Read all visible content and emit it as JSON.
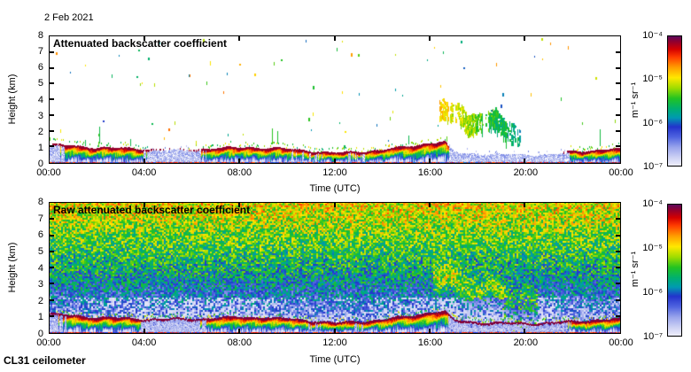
{
  "page": {
    "date_label": "2 Feb 2021",
    "instrument_label": "CL31 ceilometer",
    "background": "#ffffff"
  },
  "colormap": {
    "stops": [
      [
        0.0,
        "#eeeefb"
      ],
      [
        0.06,
        "#cfd3f4"
      ],
      [
        0.14,
        "#9aa5ec"
      ],
      [
        0.22,
        "#5064e0"
      ],
      [
        0.3,
        "#2233cc"
      ],
      [
        0.37,
        "#009ab2"
      ],
      [
        0.44,
        "#00b070"
      ],
      [
        0.52,
        "#22c322"
      ],
      [
        0.6,
        "#9fdc00"
      ],
      [
        0.68,
        "#ffe800"
      ],
      [
        0.76,
        "#ff9d00"
      ],
      [
        0.84,
        "#ff3c00"
      ],
      [
        0.9,
        "#d40000"
      ],
      [
        0.96,
        "#8f0030"
      ],
      [
        1.0,
        "#5c0a5c"
      ]
    ]
  },
  "chart_data": [
    {
      "type": "heatmap",
      "title": "Attenuated backscatter coefficient",
      "variant": "clean",
      "xlabel": "Time (UTC)",
      "ylabel": "Height (km)",
      "x_tick_labels": [
        "00:00",
        "04:00",
        "08:00",
        "12:00",
        "16:00",
        "20:00",
        "00:00"
      ],
      "x_tick_hours": [
        0,
        4,
        8,
        12,
        16,
        20,
        24
      ],
      "y_tick_labels": [
        "0",
        "1",
        "2",
        "3",
        "4",
        "5",
        "6",
        "7",
        "8"
      ],
      "y_tick_km": [
        0,
        1,
        2,
        3,
        4,
        5,
        6,
        7,
        8
      ],
      "xlim_hours": [
        0,
        24
      ],
      "ylim_km": [
        0,
        8
      ],
      "grid": false,
      "colorbar": {
        "tick_labels": [
          "10⁻⁴",
          "10⁻⁵",
          "10⁻⁶",
          "10⁻⁷"
        ],
        "unit_label": "m⁻¹ sr⁻¹",
        "log10_range": [
          -7,
          -4
        ]
      },
      "features": {
        "boundary_layer_top_km": [
          [
            0,
            1.15
          ],
          [
            1,
            1.05
          ],
          [
            2,
            0.95
          ],
          [
            3,
            0.9
          ],
          [
            4,
            0.85
          ],
          [
            5,
            0.85
          ],
          [
            6,
            0.85
          ],
          [
            7,
            0.9
          ],
          [
            8,
            0.95
          ],
          [
            9,
            0.95
          ],
          [
            10,
            0.85
          ],
          [
            11,
            0.75
          ],
          [
            12,
            0.6
          ],
          [
            13,
            0.7
          ],
          [
            14,
            0.8
          ],
          [
            15,
            1.0
          ],
          [
            16,
            1.25
          ],
          [
            16.6,
            1.3
          ],
          [
            17,
            0.75
          ],
          [
            18,
            0.65
          ],
          [
            19,
            0.6
          ],
          [
            20,
            0.6
          ],
          [
            21,
            0.6
          ],
          [
            22,
            0.7
          ],
          [
            23,
            0.8
          ],
          [
            24,
            0.85
          ]
        ],
        "plume_strength": [
          [
            0,
            0.3
          ],
          [
            1,
            0.55
          ],
          [
            2,
            0.9
          ],
          [
            3,
            0.8
          ],
          [
            4,
            0.4
          ],
          [
            5,
            0.35
          ],
          [
            6,
            0.35
          ],
          [
            7,
            0.55
          ],
          [
            8,
            0.95
          ],
          [
            9,
            0.85
          ],
          [
            10,
            0.5
          ],
          [
            11,
            0.45
          ],
          [
            12,
            0.55
          ],
          [
            13,
            0.45
          ],
          [
            14,
            0.6
          ],
          [
            15,
            0.9
          ],
          [
            16,
            0.95
          ],
          [
            16.6,
            0.7
          ],
          [
            17,
            0.1
          ],
          [
            18,
            0.12
          ],
          [
            19,
            0.25
          ],
          [
            20,
            0.1
          ],
          [
            21,
            0.1
          ],
          [
            22,
            0.55
          ],
          [
            23,
            0.8
          ],
          [
            24,
            0.7
          ]
        ],
        "elevated_plume": {
          "t_start": 16.4,
          "t_end": 19.9,
          "h_start_km": 3.3,
          "h_end_km": 2.0,
          "thickness_km": 0.8
        },
        "speck_density": 0.0009
      }
    },
    {
      "type": "heatmap",
      "title": "Raw attenuated backscatter coefficient",
      "variant": "raw",
      "xlabel": "Time (UTC)",
      "ylabel": "Height (km)",
      "x_tick_labels": [
        "00:00",
        "04:00",
        "08:00",
        "12:00",
        "16:00",
        "20:00",
        "00:00"
      ],
      "x_tick_hours": [
        0,
        4,
        8,
        12,
        16,
        20,
        24
      ],
      "y_tick_labels": [
        "0",
        "1",
        "2",
        "3",
        "4",
        "5",
        "6",
        "7",
        "8"
      ],
      "y_tick_km": [
        0,
        1,
        2,
        3,
        4,
        5,
        6,
        7,
        8
      ],
      "xlim_hours": [
        0,
        24
      ],
      "ylim_km": [
        0,
        8
      ],
      "grid": false,
      "colorbar": {
        "tick_labels": [
          "10⁻⁴",
          "10⁻⁵",
          "10⁻⁶",
          "10⁻⁷"
        ],
        "unit_label": "m⁻¹ sr⁻¹",
        "log10_range": [
          -7,
          -4
        ]
      },
      "features": {
        "boundary_layer_top_km": [
          [
            0,
            1.15
          ],
          [
            1,
            1.05
          ],
          [
            2,
            0.95
          ],
          [
            3,
            0.9
          ],
          [
            4,
            0.85
          ],
          [
            5,
            0.85
          ],
          [
            6,
            0.85
          ],
          [
            7,
            0.9
          ],
          [
            8,
            0.95
          ],
          [
            9,
            0.95
          ],
          [
            10,
            0.85
          ],
          [
            11,
            0.75
          ],
          [
            12,
            0.6
          ],
          [
            13,
            0.7
          ],
          [
            14,
            0.8
          ],
          [
            15,
            1.0
          ],
          [
            16,
            1.25
          ],
          [
            16.6,
            1.3
          ],
          [
            17,
            0.75
          ],
          [
            18,
            0.65
          ],
          [
            19,
            0.6
          ],
          [
            20,
            0.6
          ],
          [
            21,
            0.6
          ],
          [
            22,
            0.7
          ],
          [
            23,
            0.8
          ],
          [
            24,
            0.85
          ]
        ],
        "plume_strength": [
          [
            0,
            0.3
          ],
          [
            1,
            0.55
          ],
          [
            2,
            0.9
          ],
          [
            3,
            0.8
          ],
          [
            4,
            0.4
          ],
          [
            5,
            0.35
          ],
          [
            6,
            0.35
          ],
          [
            7,
            0.55
          ],
          [
            8,
            0.95
          ],
          [
            9,
            0.85
          ],
          [
            10,
            0.5
          ],
          [
            11,
            0.45
          ],
          [
            12,
            0.55
          ],
          [
            13,
            0.45
          ],
          [
            14,
            0.6
          ],
          [
            15,
            0.9
          ],
          [
            16,
            0.95
          ],
          [
            16.6,
            0.7
          ],
          [
            17,
            0.1
          ],
          [
            18,
            0.12
          ],
          [
            19,
            0.25
          ],
          [
            20,
            0.1
          ],
          [
            21,
            0.1
          ],
          [
            22,
            0.55
          ],
          [
            23,
            0.8
          ],
          [
            24,
            0.7
          ]
        ],
        "elevated_plume": {
          "t_start": 16.4,
          "t_end": 19.9,
          "h_start_km": 3.3,
          "h_end_km": 2.0,
          "thickness_km": 0.8
        },
        "noise_profile_u_by_km": [
          [
            0.3,
            0.08
          ],
          [
            1,
            0.16
          ],
          [
            2,
            0.28
          ],
          [
            3,
            0.36
          ],
          [
            4,
            0.44
          ],
          [
            5,
            0.5
          ],
          [
            6,
            0.56
          ],
          [
            7,
            0.63
          ],
          [
            8,
            0.68
          ]
        ],
        "noise_spread": 0.34,
        "white_gap_below_km": 2.3,
        "white_gap_prob": 0.26
      }
    }
  ]
}
